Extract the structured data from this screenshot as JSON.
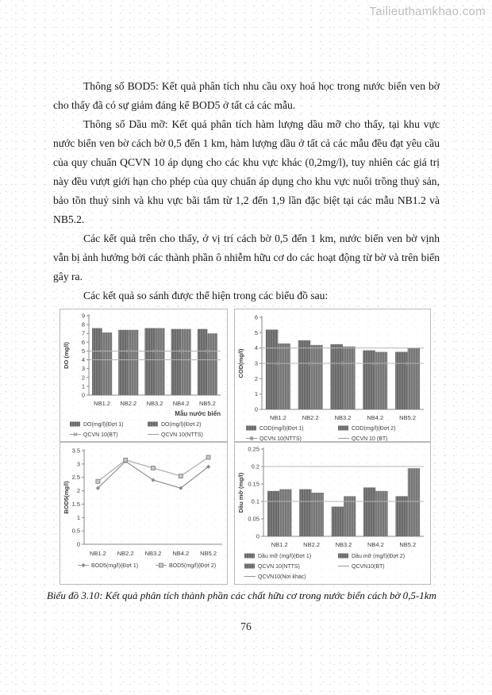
{
  "watermark": "Tailieuthamkhao.com",
  "page_number": "76",
  "paragraphs": [
    "Thông số BOD5: Kết quả phân tích nhu cầu oxy hoá học trong nước biển ven bờ cho thấy đã có sự giảm đáng kể BOD5 ở tất cả các mẫu.",
    "Thông số Dầu mỡ: Kết quả phân tích hàm lượng dầu mỡ cho thấy, tại khu vực nước biển ven bờ cách bờ 0,5 đến 1 km, hàm lượng dầu ở tất cả các mẫu đều đạt yêu cầu của quy chuẩn QCVN 10 áp dụng cho các khu vực khác (0,2mg/l), tuy  nhiên các giá trị này đều vượt giới hạn cho phép của quy chuẩn áp dụng cho khu vực nuôi trồng thuỷ sản, bảo tồn thuỷ sinh và khu vực bãi tắm từ 1,2 đến 1,9 lần đặc biệt tại các mẫu NB1.2 và NB5.2.",
    "Các kết quả trên cho thấy, ở vị trí cách bờ 0,5 đến 1 km, nước biển ven bờ vịnh vẫn bị ảnh hưởng bởi các thành phần ô nhiễm hữu cơ do các hoạt động từ bờ và trên biển gây ra.",
    "Các kết quả so sánh được thể hiện trong các biểu đồ sau:"
  ],
  "caption": "Biểu đồ 3.10: Kết quả phân tích thành phần các chất hữu cơ trong nước biển cách bờ 0,5-1km",
  "colors": {
    "bar_fill": "#828282",
    "bar_stripe": "#5a5a5a",
    "ref_line": "#b4b4b4",
    "axis": "#8a8a8a",
    "chart_text": "#3c3c3c"
  },
  "chart_data": [
    {
      "type": "bar",
      "title": "",
      "ylabel": "DO (mg/l)",
      "xlabel": "Mẫu nước biển",
      "categories": [
        "NB1.2",
        "NB2.2",
        "NB3.2",
        "NB4.2",
        "NB5.2"
      ],
      "series": [
        {
          "name": "DO(mg/l)(Đợt 1)",
          "values": [
            7.6,
            7.4,
            7.6,
            7.5,
            7.5
          ]
        },
        {
          "name": "DO(mg/l)(Đợt 2)",
          "values": [
            7.1,
            7.4,
            7.6,
            7.5,
            7.0
          ]
        }
      ],
      "ref_lines": [
        {
          "name": "QCVN 10(BT)",
          "value": 5,
          "symbol": "x"
        },
        {
          "name": "QCVN 10(NTTS)",
          "value": 4,
          "symbol": null
        }
      ],
      "ylim": [
        0,
        9
      ],
      "yticks": [
        "0",
        "1",
        "2",
        "3",
        "4",
        "5",
        "6",
        "7",
        "8",
        "9"
      ],
      "legend": [
        {
          "label": "DO(mg/l)(Đợt 1)",
          "marker": "bar",
          "symbol": null
        },
        {
          "label": "DO(mg/l)(Đợt 2)",
          "marker": "bar",
          "symbol": null
        },
        {
          "label": "QCVN 10(BT)",
          "marker": "line",
          "symbol": "x"
        },
        {
          "label": "QCVN 10(NTTS)",
          "marker": "line",
          "symbol": null
        }
      ]
    },
    {
      "type": "bar",
      "title": "",
      "ylabel": "COD(mg/l)",
      "xlabel": "",
      "categories": [
        "NB1.2",
        "NB2.2",
        "NB3.2",
        "NB4.2",
        "NB5.2"
      ],
      "series": [
        {
          "name": "COD(mg/l)(Đợt 1)",
          "values": [
            5.2,
            4.5,
            4.25,
            3.85,
            3.75
          ]
        },
        {
          "name": "COD(mg/l)(Đợt 2)",
          "values": [
            4.3,
            4.2,
            4.1,
            3.75,
            4.0
          ]
        }
      ],
      "ref_lines": [
        {
          "name": "QCVN 10(NTTS)",
          "value": 3,
          "symbol": "star"
        },
        {
          "name": "QCVN 10 (BT)",
          "value": 4,
          "symbol": null
        }
      ],
      "ylim": [
        0,
        6
      ],
      "yticks": [
        "0",
        "1",
        "2",
        "3",
        "4",
        "5",
        "6"
      ],
      "legend": [
        {
          "label": "COD(mg/l)(Đợt 1)",
          "marker": "bar",
          "symbol": null
        },
        {
          "label": "COD(mg/l)(Đợt 2)",
          "marker": "bar",
          "symbol": null
        },
        {
          "label": "QCVN 10(NTTS)",
          "marker": "line",
          "symbol": "star"
        },
        {
          "label": "QCVN 10 (BT)",
          "marker": "line",
          "symbol": null
        }
      ]
    },
    {
      "type": "line",
      "title": "",
      "ylabel": "BOD5(mg/l)",
      "xlabel": "",
      "categories": [
        "NB1.2",
        "NB2.2",
        "NB3.2",
        "NB4.2",
        "NB5.2"
      ],
      "series": [
        {
          "name": "BOD5(mg/l)(Đợt 1)",
          "values": [
            2.1,
            3.1,
            2.4,
            2.1,
            2.9
          ],
          "marker": "diamond"
        },
        {
          "name": "BOD5(mg/l)(Đợt 2)",
          "values": [
            2.35,
            3.15,
            2.85,
            2.55,
            3.25
          ],
          "marker": "square"
        }
      ],
      "ref_lines": [],
      "ylim": [
        0,
        3.5
      ],
      "yticks": [
        "0",
        "0.5",
        "1",
        "1.5",
        "2",
        "2.5",
        "3",
        "3.5"
      ],
      "legend": [
        {
          "label": "BOD5(mg/l)(Đợt 1)",
          "marker": "line",
          "symbol": "diamond"
        },
        {
          "label": "BOD5(mg/l)(Đợt 2)",
          "marker": "line",
          "symbol": "square"
        }
      ]
    },
    {
      "type": "bar",
      "title": "",
      "ylabel": "Dầu mỡ (mg/l)",
      "xlabel": "",
      "categories": [
        "NB1.2",
        "NB2.2",
        "NB3.2",
        "NB4.2",
        "NB5.2"
      ],
      "series": [
        {
          "name": "Dầu mỡ (mg/l)(Đợt 1)",
          "values": [
            0.13,
            0.135,
            0.085,
            0.14,
            0.115
          ]
        },
        {
          "name": "Dầu mỡ (mg/l)(Đợt 2)",
          "values": [
            0.135,
            0.125,
            0.115,
            0.13,
            0.195
          ]
        }
      ],
      "ref_lines": [
        {
          "name": "QCVN 10(NTTS)",
          "value": 0,
          "symbol": null
        },
        {
          "name": "QCVN10(BT)",
          "value": 0.1,
          "symbol": null
        },
        {
          "name": "QCVN10(Nơi khác)",
          "value": 0.2,
          "symbol": null
        }
      ],
      "ylim": [
        0,
        0.25
      ],
      "yticks": [
        "0",
        "0.05",
        "0.1",
        "0.15",
        "0.2",
        "0.25"
      ],
      "legend": [
        {
          "label": "Dầu mỡ (mg/l)(Đợt 1)",
          "marker": "bar",
          "symbol": null
        },
        {
          "label": "Dầu mỡ (mg/l)(Đợt 2)",
          "marker": "bar",
          "symbol": null
        },
        {
          "label": "QCVN 10(NTTS)",
          "marker": "bar",
          "symbol": null
        },
        {
          "label": "QCVN10(BT)",
          "marker": "line",
          "symbol": null
        },
        {
          "label": "QCVN10(Nơi khác)",
          "marker": "line",
          "symbol": null
        }
      ]
    }
  ]
}
